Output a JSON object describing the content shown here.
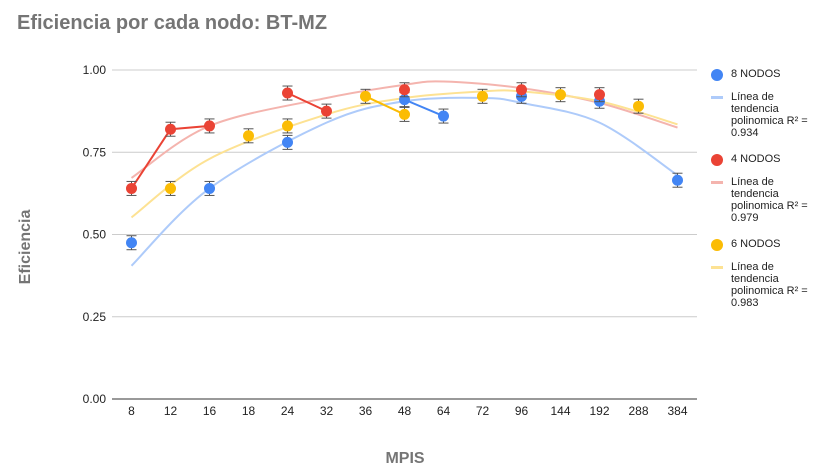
{
  "chart_data": {
    "type": "scatter",
    "title": "Eficiencia por cada nodo: BT-MZ",
    "xlabel": "MPIS",
    "ylabel": "Eficiencia",
    "categories": [
      "8",
      "12",
      "16",
      "18",
      "24",
      "32",
      "36",
      "48",
      "64",
      "72",
      "96",
      "144",
      "192",
      "288",
      "384"
    ],
    "ylim": [
      0,
      1
    ],
    "yticks": [
      "0.00",
      "0.25",
      "0.50",
      "0.75",
      "1.00"
    ],
    "grid": true,
    "legend_position": "right",
    "series": [
      {
        "name": "8 NODOS",
        "color": "#4285f4",
        "points": [
          [
            "8",
            0.475
          ],
          [
            "16",
            0.64
          ],
          [
            "24",
            0.78
          ],
          [
            "48",
            0.91
          ],
          [
            "64",
            0.86
          ],
          [
            "96",
            0.92
          ],
          [
            "192",
            0.905
          ],
          [
            "384",
            0.665
          ]
        ],
        "connect": [
          [
            "48",
            "64"
          ]
        ],
        "trend_name": "Línea de tendencia polinomica R² = 0.934",
        "trend_color": "#aecbfa",
        "trend_points": [
          [
            "8",
            0.405
          ],
          [
            "16",
            0.64
          ],
          [
            "32",
            0.84
          ],
          [
            "48",
            0.905
          ],
          [
            "72",
            0.915
          ],
          [
            "96",
            0.9
          ],
          [
            "192",
            0.84
          ],
          [
            "384",
            0.68
          ]
        ]
      },
      {
        "name": "4 NODOS",
        "color": "#ea4335",
        "points": [
          [
            "8",
            0.64
          ],
          [
            "12",
            0.82
          ],
          [
            "16",
            0.83
          ],
          [
            "24",
            0.93
          ],
          [
            "32",
            0.875
          ],
          [
            "48",
            0.94
          ],
          [
            "96",
            0.94
          ],
          [
            "192",
            0.925
          ]
        ],
        "connect": [
          [
            "8",
            "12"
          ],
          [
            "12",
            "16"
          ],
          [
            "24",
            "32"
          ]
        ],
        "trend_name": "Línea de tendencia polinomica R² = 0.979",
        "trend_color": "#f4b4ae",
        "trend_points": [
          [
            "8",
            0.672
          ],
          [
            "16",
            0.83
          ],
          [
            "32",
            0.915
          ],
          [
            "48",
            0.955
          ],
          [
            "64",
            0.965
          ],
          [
            "96",
            0.945
          ],
          [
            "192",
            0.9
          ],
          [
            "384",
            0.825
          ]
        ]
      },
      {
        "name": "6 NODOS",
        "color": "#fbbc04",
        "points": [
          [
            "12",
            0.64
          ],
          [
            "18",
            0.8
          ],
          [
            "24",
            0.83
          ],
          [
            "36",
            0.92
          ],
          [
            "48",
            0.865
          ],
          [
            "72",
            0.92
          ],
          [
            "144",
            0.925
          ],
          [
            "288",
            0.89
          ]
        ],
        "connect": [
          [
            "36",
            "48"
          ]
        ],
        "trend_name": "Línea de tendencia polinomica R² = 0.983",
        "trend_color": "#fde293",
        "trend_points": [
          [
            "8",
            0.552
          ],
          [
            "16",
            0.73
          ],
          [
            "32",
            0.865
          ],
          [
            "48",
            0.915
          ],
          [
            "72",
            0.935
          ],
          [
            "96",
            0.935
          ],
          [
            "192",
            0.905
          ],
          [
            "384",
            0.835
          ]
        ]
      }
    ]
  }
}
